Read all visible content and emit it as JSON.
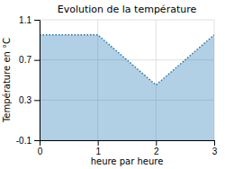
{
  "chart_data": {
    "type": "area",
    "title": "Evolution de la température",
    "xlabel": "heure par heure",
    "ylabel": "Température en °C",
    "x": [
      0,
      1,
      2,
      3
    ],
    "values": [
      0.95,
      0.95,
      0.45,
      0.95
    ],
    "xlim": [
      0,
      3
    ],
    "ylim": [
      -0.1,
      1.1
    ],
    "xticks": [
      0,
      1,
      2,
      3
    ],
    "yticks": [
      -0.1,
      0.3,
      0.7,
      1.1
    ],
    "grid": true,
    "line_style": "dotted"
  }
}
